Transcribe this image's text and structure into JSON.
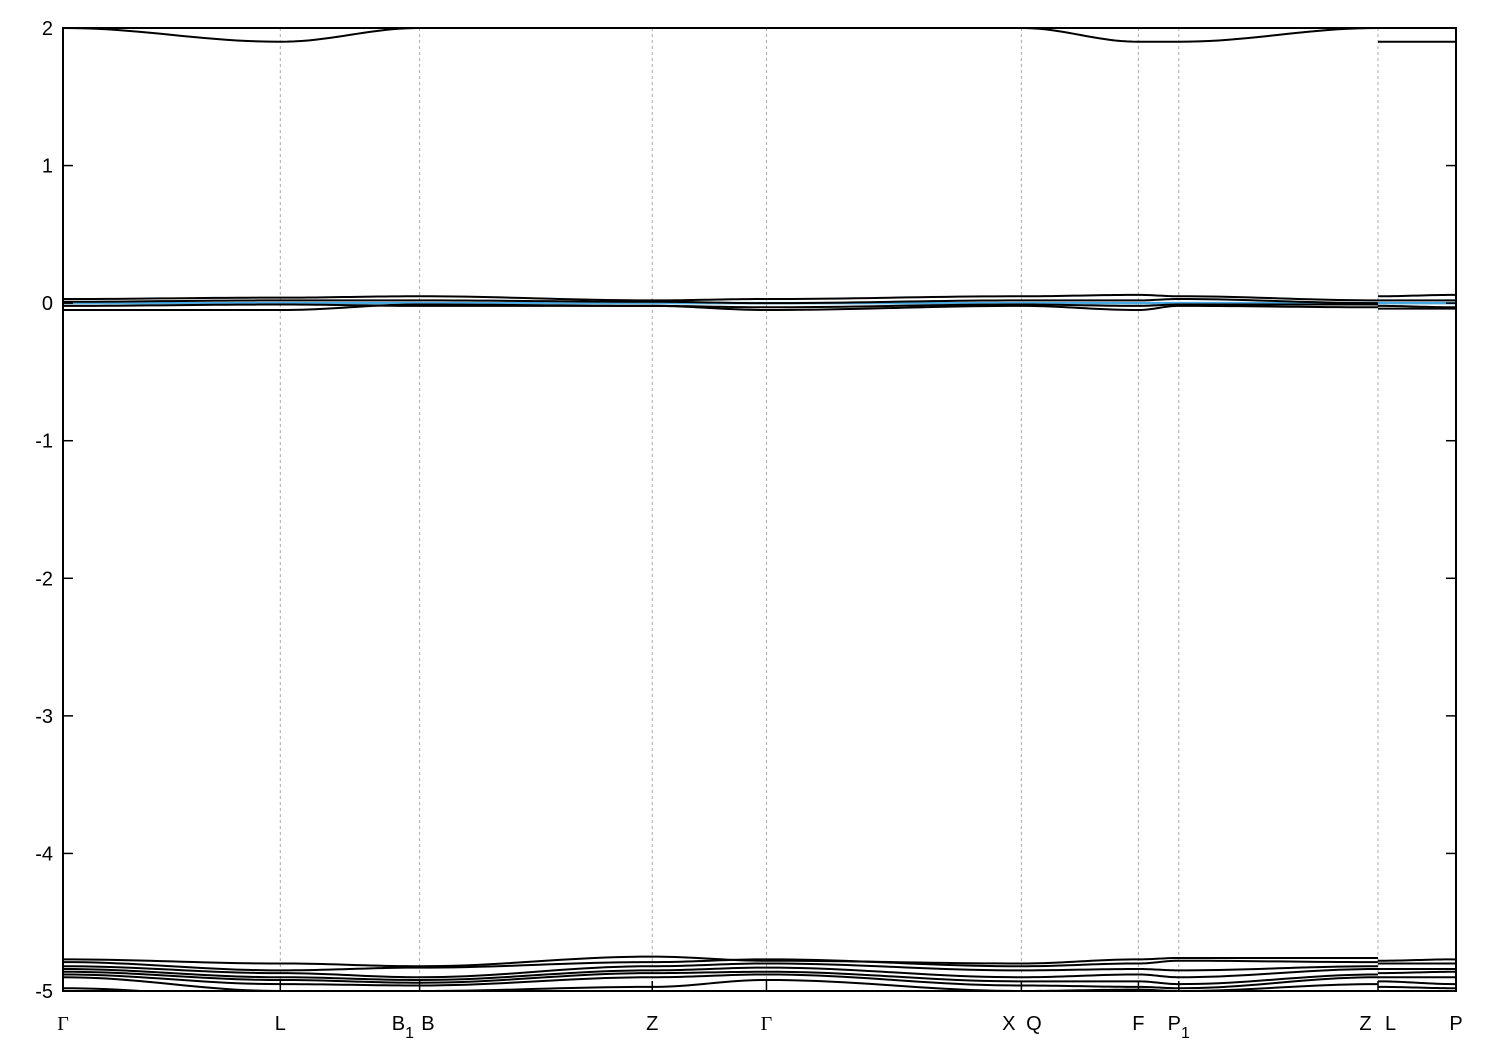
{
  "chart_data": {
    "type": "line",
    "title": "",
    "xlabel": "",
    "ylabel": "",
    "ylim": [
      -5,
      2
    ],
    "xlim": [
      0,
      1
    ],
    "yticks": [
      "-5",
      "-4",
      "-3",
      "-2",
      "-1",
      "0",
      "1",
      "2"
    ],
    "ytick_values": [
      -5,
      -4,
      -3,
      -2,
      -1,
      0,
      1,
      2
    ],
    "grid": "dashed vertical lines at high-symmetry points",
    "kpoints": [
      {
        "label": "Γ",
        "sub": "",
        "k": 0
      },
      {
        "label": "L",
        "sub": "",
        "k": 0.156
      },
      {
        "label": "B",
        "sub": "1",
        "k": 0.244
      },
      {
        "label": "B",
        "sub": "",
        "k": 0.262
      },
      {
        "label": "Z",
        "sub": "",
        "k": 0.423
      },
      {
        "label": "Γ",
        "sub": "",
        "k": 0.505
      },
      {
        "label": "X",
        "sub": "",
        "k": 0.679
      },
      {
        "label": "Q",
        "sub": "",
        "k": 0.697
      },
      {
        "label": "F",
        "sub": "",
        "k": 0.772
      },
      {
        "label": "P",
        "sub": "1",
        "k": 0.801
      },
      {
        "label": "Z",
        "sub": "",
        "k": 0.935
      },
      {
        "label": "L",
        "sub": "",
        "k": 0.953
      },
      {
        "label": "P",
        "sub": "",
        "k": 1.0
      }
    ],
    "gridlines_k": [
      0.156,
      0.256,
      0.423,
      0.505,
      0.688,
      0.772,
      0.801,
      0.944
    ],
    "node_k": [
      0,
      0.156,
      0.256,
      0.423,
      0.505,
      0.688,
      0.772,
      0.801,
      0.944,
      0.944,
      1.0
    ],
    "fermi_level": 0,
    "fermi_color": "#4aa8e0",
    "band_color": "#000000",
    "bands": [
      [
        2.0,
        1.9,
        2.0,
        2.05,
        2.05,
        2.0,
        1.9,
        1.9,
        2.0,
        1.9,
        1.9
      ],
      [
        0.03,
        0.04,
        0.05,
        0.02,
        0.03,
        0.05,
        0.06,
        0.05,
        0.02,
        0.05,
        0.06
      ],
      [
        0.01,
        0.02,
        0.02,
        0.01,
        0.0,
        0.02,
        0.02,
        0.03,
        0.0,
        0.02,
        0.02
      ],
      [
        -0.02,
        -0.01,
        -0.02,
        -0.02,
        -0.03,
        -0.01,
        -0.02,
        -0.01,
        -0.01,
        -0.02,
        -0.03
      ],
      [
        -0.05,
        -0.05,
        -0.01,
        -0.02,
        -0.05,
        -0.02,
        -0.05,
        -0.02,
        -0.03,
        -0.04,
        -0.04
      ],
      [
        -4.77,
        -4.8,
        -4.82,
        -4.75,
        -4.78,
        -4.8,
        -4.77,
        -4.76,
        -4.76,
        -4.78,
        -4.77
      ],
      [
        -4.79,
        -4.85,
        -4.83,
        -4.79,
        -4.77,
        -4.82,
        -4.8,
        -4.78,
        -4.79,
        -4.8,
        -4.8
      ],
      [
        -4.82,
        -4.87,
        -4.9,
        -4.82,
        -4.8,
        -4.85,
        -4.84,
        -4.85,
        -4.82,
        -4.84,
        -4.84
      ],
      [
        -4.84,
        -4.9,
        -4.92,
        -4.85,
        -4.83,
        -4.9,
        -4.88,
        -4.9,
        -4.84,
        -4.87,
        -4.86
      ],
      [
        -4.86,
        -4.92,
        -4.94,
        -4.87,
        -4.86,
        -4.93,
        -4.93,
        -4.95,
        -4.88,
        -4.9,
        -4.9
      ],
      [
        -4.88,
        -4.95,
        -4.96,
        -4.9,
        -4.88,
        -4.96,
        -4.97,
        -4.98,
        -4.9,
        -4.93,
        -4.95
      ],
      [
        -4.9,
        -5.0,
        -5.0,
        -4.97,
        -4.92,
        -5.0,
        -4.99,
        -5.0,
        -4.95,
        -4.97,
        -4.98
      ],
      [
        -4.98,
        -5.05,
        -5.05,
        -5.0,
        -5.0,
        -5.05,
        -5.05,
        -5.05,
        -5.0,
        -5.0,
        -5.0
      ]
    ]
  }
}
